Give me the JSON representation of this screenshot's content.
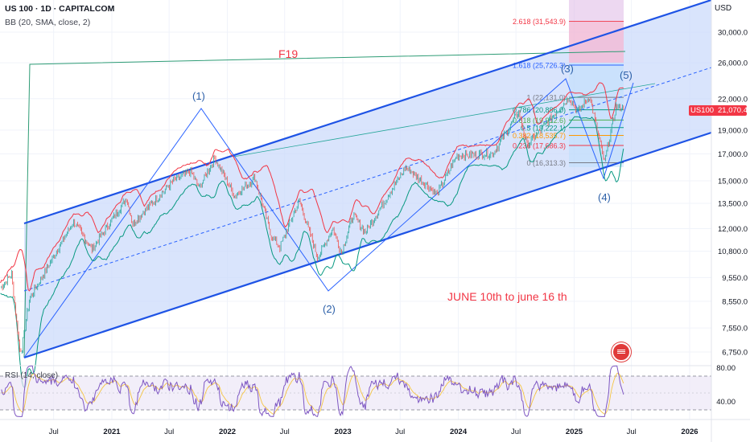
{
  "header": {
    "line1": "US 100 · 1D · CAPITALCOM",
    "line2": "BB (20, SMA, close, 2)"
  },
  "rsi_label": "RSI (14, close)",
  "currency": "USD",
  "price_badge": {
    "symbol": "US100",
    "price": "21,070.4",
    "color": "#f23645"
  },
  "annotations": {
    "f19": "F19",
    "wave1": "(1)",
    "wave2": "(2)",
    "wave3": "(3)",
    "wave4": "(4)",
    "wave5": "(5)",
    "date_note": "JUNE 10th to june 16 th"
  },
  "fib_levels": [
    {
      "label": "2.618 (31,543.9)",
      "value": 31543.9,
      "color": "#f23645"
    },
    {
      "label": "1.618 (25,726.3)",
      "value": 25726.3,
      "color": "#2962ff"
    },
    {
      "label": "1 (22,131.0)",
      "value": 22131.0,
      "color": "#787b86"
    },
    {
      "label": "0.786 (20,886.0)",
      "value": 20886.0,
      "color": "#089981"
    },
    {
      "label": "0.618 (19,912.6)",
      "value": 19912.6,
      "color": "#4caf50"
    },
    {
      "label": "0.5 (19,222.1)",
      "value": 19222.1,
      "color": "#089981"
    },
    {
      "label": "0.382 (18,535.7)",
      "value": 18535.7,
      "color": "#ff9800"
    },
    {
      "label": "0.236 (17,686.3)",
      "value": 17686.3,
      "color": "#f23645"
    },
    {
      "label": "0 (16,313.3)",
      "value": 16313.3,
      "color": "#787b86"
    }
  ],
  "colors": {
    "channel": "#2962ff",
    "channel_fill": "#c9d8fb",
    "candle_up": "#26a69a",
    "candle_down": "#ef5350",
    "bb_upper": "#f23645",
    "bb_lower": "#089981",
    "rsi": "#7e57c2"
  },
  "chart_data": {
    "type": "line",
    "title": "US 100 · 1D · CAPITALCOM",
    "y_axis_scale": "log",
    "y_ticks": [
      "30,000.0",
      "26,000.0",
      "22,000.0",
      "19,000.0",
      "17,000.0",
      "15,000.0",
      "13,500.0",
      "12,000.0",
      "10,800.0",
      "9,550.0",
      "8,550.0",
      "7,550.0",
      "6,750.0"
    ],
    "y_tick_values": [
      30000,
      26000,
      22000,
      19000,
      17000,
      15000,
      13500,
      12000,
      10800,
      9550,
      8550,
      7550,
      6750
    ],
    "x_ticks": [
      "Jul",
      "2021",
      "Jul",
      "2022",
      "Jul",
      "2023",
      "Jul",
      "2024",
      "Jul",
      "2025",
      "Jul",
      "2026"
    ],
    "x_tick_dates": [
      "2020-07-01",
      "2021-01-01",
      "2021-07-01",
      "2022-01-01",
      "2022-07-01",
      "2023-01-01",
      "2023-07-01",
      "2024-01-01",
      "2024-07-01",
      "2025-01-01",
      "2025-07-01",
      "2026-01-01"
    ],
    "series": [
      {
        "name": "US100",
        "points": [
          [
            "2020-01-15",
            9100
          ],
          [
            "2020-02-19",
            9700
          ],
          [
            "2020-03-16",
            6800
          ],
          [
            "2020-03-23",
            6900
          ],
          [
            "2020-04-15",
            8600
          ],
          [
            "2020-06-10",
            10000
          ],
          [
            "2020-09-02",
            12400
          ],
          [
            "2020-10-30",
            10900
          ],
          [
            "2021-02-16",
            13800
          ],
          [
            "2021-03-08",
            12300
          ],
          [
            "2021-07-15",
            15000
          ],
          [
            "2021-09-07",
            15700
          ],
          [
            "2021-10-04",
            14500
          ],
          [
            "2021-11-22",
            16700
          ],
          [
            "2022-01-24",
            14000
          ],
          [
            "2022-03-29",
            15200
          ],
          [
            "2022-05-20",
            11600
          ],
          [
            "2022-06-16",
            11000
          ],
          [
            "2022-08-16",
            13700
          ],
          [
            "2022-10-13",
            10500
          ],
          [
            "2022-12-01",
            12000
          ],
          [
            "2022-12-28",
            10700
          ],
          [
            "2023-02-02",
            12800
          ],
          [
            "2023-03-13",
            11800
          ],
          [
            "2023-07-19",
            16000
          ],
          [
            "2023-10-26",
            14100
          ],
          [
            "2023-12-28",
            16900
          ],
          [
            "2024-04-19",
            17000
          ],
          [
            "2024-07-10",
            20700
          ],
          [
            "2024-08-05",
            17700
          ],
          [
            "2024-12-16",
            22100
          ],
          [
            "2025-01-13",
            20700
          ],
          [
            "2025-02-19",
            22200
          ],
          [
            "2025-04-07",
            16300
          ],
          [
            "2025-05-13",
            21200
          ],
          [
            "2025-06-06",
            21070
          ]
        ]
      }
    ],
    "rsi": {
      "name": "RSI (14, close)",
      "levels": [
        70,
        30
      ],
      "ticks": [
        "80.00",
        "40.00"
      ],
      "tick_values": [
        80,
        40
      ]
    }
  }
}
